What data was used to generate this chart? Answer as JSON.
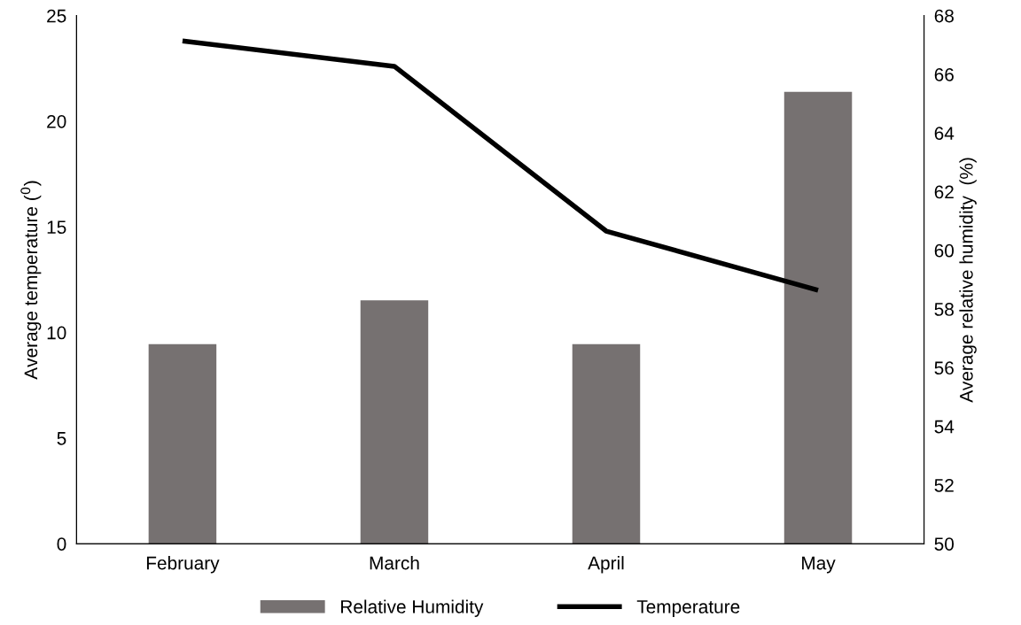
{
  "chart_data": {
    "type": "bar",
    "categories": [
      "February",
      "March",
      "April",
      "May"
    ],
    "ylabel": "Average temperature ($^{0}$)",
    "y2label": "Average relative humidity  (%)",
    "ylim": [
      0,
      25
    ],
    "yticks": [
      0,
      5,
      10,
      15,
      20,
      25
    ],
    "y2lim": [
      50,
      68
    ],
    "y2ticks": [
      50,
      52,
      54,
      56,
      58,
      60,
      62,
      64,
      66,
      68
    ],
    "series": [
      {
        "name": "Relative Humidity",
        "axis": "y2",
        "color": "#767171",
        "values": [
          56.8,
          58.3,
          56.8,
          65.4
        ]
      },
      {
        "name": "Temperature",
        "type": "line",
        "color": "#000000",
        "values": [
          23.8,
          22.6,
          14.8,
          12.0
        ]
      }
    ],
    "legend": "bottom",
    "grid": false,
    "marker": "none",
    "line_style": "solid"
  }
}
